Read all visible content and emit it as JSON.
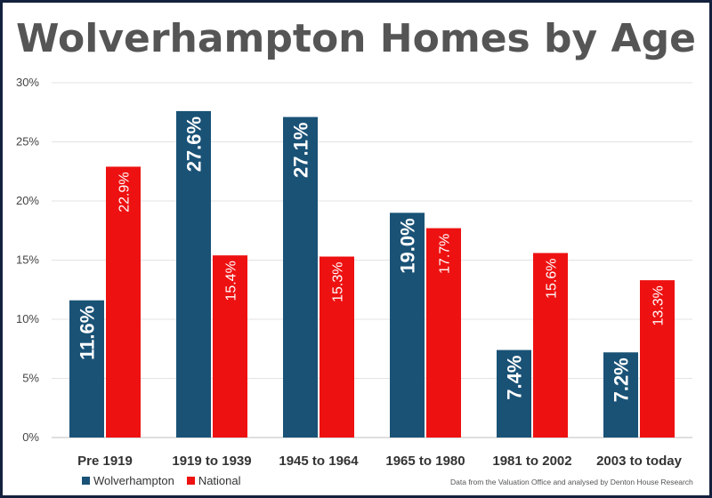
{
  "chart_data": {
    "type": "bar",
    "title": "Wolverhampton Homes by Age",
    "categories": [
      "Pre 1919",
      "1919 to 1939",
      "1945 to 1964",
      "1965 to 1980",
      "1981 to 2002",
      "2003 to today"
    ],
    "series": [
      {
        "name": "Wolverhampton",
        "color": "#1a5276",
        "values": [
          11.6,
          27.6,
          27.1,
          19.0,
          7.4,
          7.2
        ],
        "labels": [
          "11.6%",
          "27.6%",
          "27.1%",
          "19.0%",
          "7.4%",
          "7.2%"
        ]
      },
      {
        "name": "National",
        "color": "#ee1111",
        "values": [
          22.9,
          15.4,
          15.3,
          17.7,
          15.6,
          13.3
        ],
        "labels": [
          "22.9%",
          "15.4%",
          "15.3%",
          "17.7%",
          "15.6%",
          "13.3%"
        ]
      }
    ],
    "ylim": [
      0,
      30
    ],
    "yticks": [
      0,
      5,
      10,
      15,
      20,
      25,
      30
    ],
    "ytick_labels": [
      "0%",
      "5%",
      "10%",
      "15%",
      "20%",
      "25%",
      "30%"
    ],
    "grid": true,
    "legend_position": "bottom-left",
    "source": "Data from the Valuation Office and analysed by Denton House Research"
  }
}
